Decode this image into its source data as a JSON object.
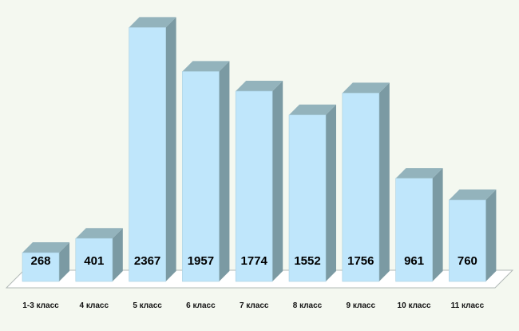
{
  "chart_data": {
    "type": "bar",
    "title": "",
    "xlabel": "",
    "ylabel": "",
    "categories": [
      "1-3 класс",
      "4 класс",
      "5 класс",
      "6 класс",
      "7 класс",
      "8 класс",
      "9 класс",
      "10 класс",
      "11 класс"
    ],
    "values": [
      268,
      401,
      2367,
      1957,
      1774,
      1552,
      1756,
      961,
      760
    ],
    "ylim": [
      0,
      2400
    ],
    "grid": false,
    "colors": {
      "front": "#bfe6fb",
      "side": "#7b9aa3",
      "top": "#93b3bc",
      "floor": "#ffffff"
    }
  }
}
